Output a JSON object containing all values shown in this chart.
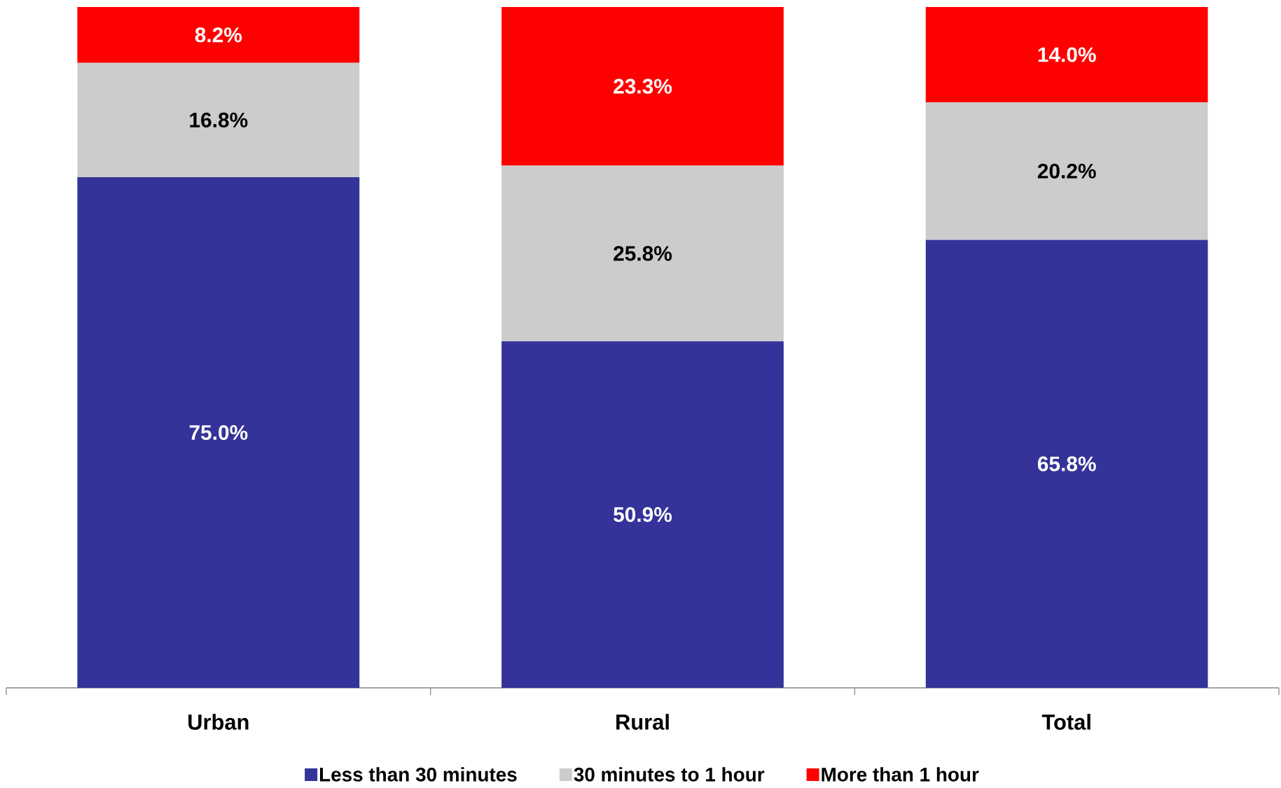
{
  "chart_data": {
    "type": "bar",
    "stacked": true,
    "categories": [
      "Urban",
      "Rural",
      "Total"
    ],
    "series": [
      {
        "name": "Less than 30 minutes",
        "color": "#333399",
        "values": [
          75.0,
          50.9,
          65.8
        ],
        "value_labels": [
          "75.0%",
          "50.9%",
          "65.8%"
        ]
      },
      {
        "name": "30 minutes to 1 hour",
        "color": "#cccccc",
        "values": [
          16.8,
          25.8,
          20.2
        ],
        "value_labels": [
          "16.8%",
          "25.8%",
          "20.2%"
        ]
      },
      {
        "name": "More than 1 hour",
        "color": "#ff0000",
        "values": [
          8.2,
          23.3,
          14.0
        ],
        "value_labels": [
          "8.2%",
          "23.3%",
          "14.0%"
        ]
      }
    ],
    "ylim": [
      0,
      100
    ],
    "legend": "bottom"
  }
}
